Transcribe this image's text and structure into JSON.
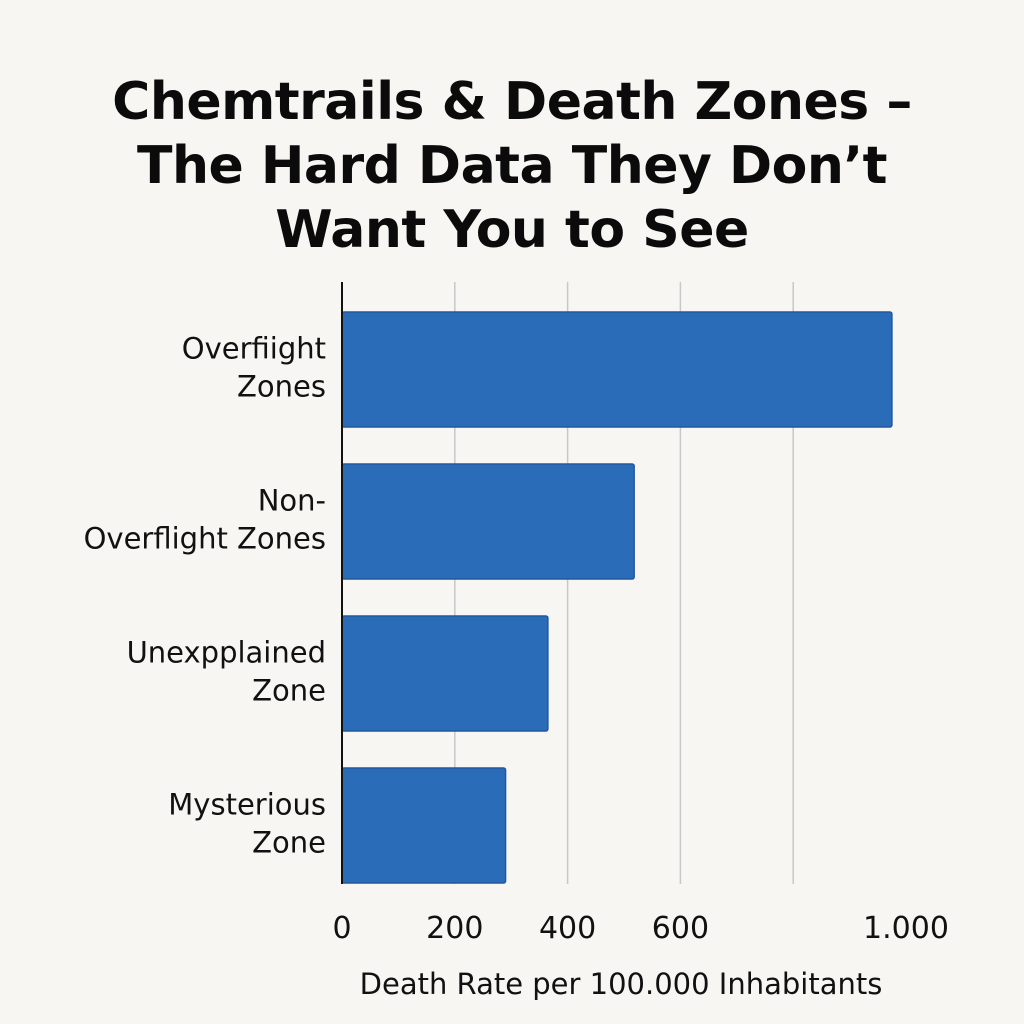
{
  "chart_data": {
    "type": "bar",
    "orientation": "horizontal",
    "title_lines": [
      "Chemtrails & Death Zones –",
      "The Hard Data They Don’t",
      "Want You to See"
    ],
    "categories": [
      [
        "Overfiight",
        "Zones"
      ],
      [
        "Non-",
        "Overflight Zones"
      ],
      [
        "Unexpplained",
        "Zone"
      ],
      [
        "Mysterious",
        "Zone"
      ]
    ],
    "values": [
      975,
      518,
      365,
      290
    ],
    "xlim": [
      0,
      1000
    ],
    "x_ticks": [
      0,
      200,
      400,
      600,
      1000
    ],
    "x_tick_labels": [
      "0",
      "200",
      "400",
      "600",
      "1.000"
    ],
    "gridlines_at": [
      200,
      400,
      600,
      800
    ],
    "xlabel": "Death Rate per 100.000 Inhabitants",
    "ylabel": "",
    "grid": true,
    "legend": "none",
    "colors": {
      "bar_fill": "#2b6cb9",
      "bar_stroke": "#1f58a0",
      "grid": "#c8c8c8",
      "axis": "#111111",
      "text": "#111111",
      "background": "#f7f6f3"
    }
  }
}
